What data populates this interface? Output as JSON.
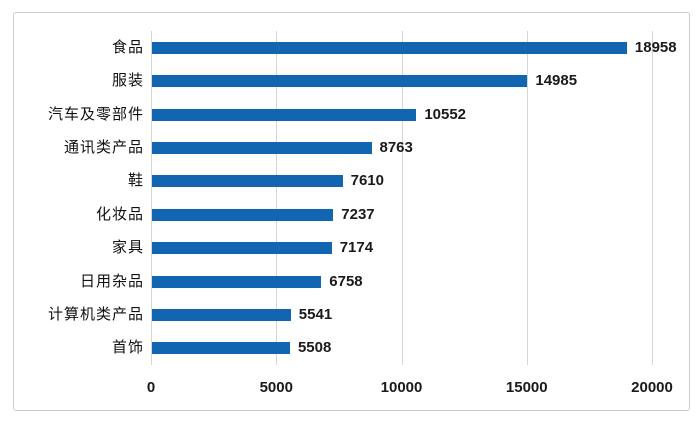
{
  "chart_data": {
    "type": "bar",
    "orientation": "horizontal",
    "title": "",
    "xlabel": "",
    "ylabel": "",
    "legend_position": "none",
    "grid": "vertical-only",
    "categories": [
      "食品",
      "服装",
      "汽车及零部件",
      "通讯类产品",
      "鞋",
      "化妆品",
      "家具",
      "日用杂品",
      "计算机类产品",
      "首饰"
    ],
    "values": [
      18958,
      14985,
      10552,
      8763,
      7610,
      7237,
      7174,
      6758,
      5541,
      5508
    ],
    "data_labels": [
      "18958",
      "14985",
      "10552",
      "8763",
      "7610",
      "7237",
      "7174",
      "6758",
      "5541",
      "5508"
    ],
    "x_ticks": [
      "0",
      "5000",
      "10000",
      "15000",
      "20000"
    ],
    "x_tick_values": [
      0,
      5000,
      10000,
      15000,
      20000
    ],
    "xlim": [
      0,
      20000
    ],
    "colors": {
      "bar": "#1265b0",
      "gridline": "#d6d6d6",
      "axis_line": "#d6d6d6",
      "text": "#1a1a1a",
      "frame_border": "#cccccc",
      "background": "#ffffff"
    }
  }
}
